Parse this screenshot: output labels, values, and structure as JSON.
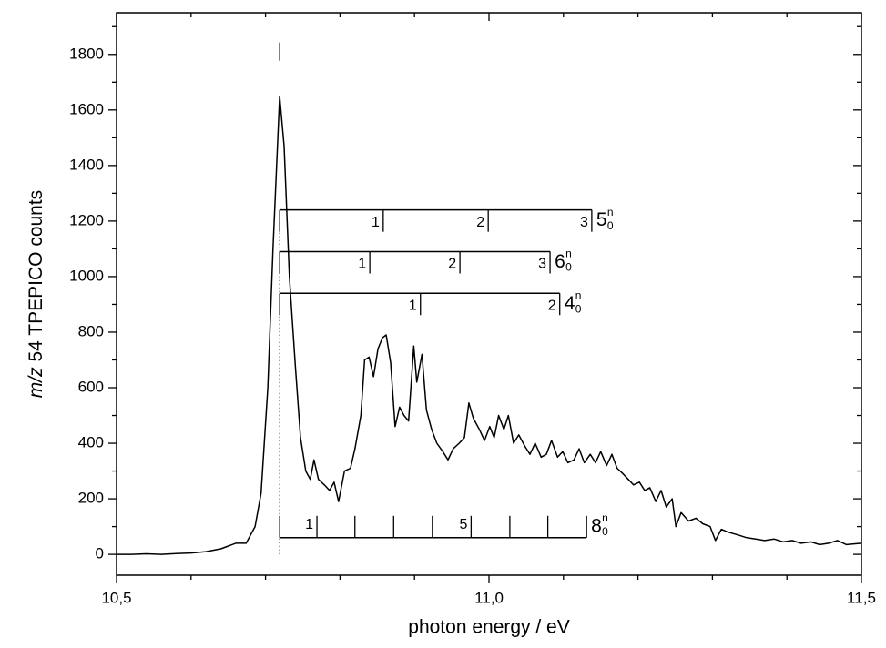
{
  "chart_data": {
    "type": "line",
    "xlabel": "photon energy / eV",
    "ylabel": {
      "italic": "m/z",
      "text": "54 TPEPICO counts"
    },
    "color": "#000000",
    "xlim": [
      10.5,
      11.5
    ],
    "ylim": [
      -75,
      1950
    ],
    "xticks": [
      {
        "value": 10.5,
        "label": "10,5"
      },
      {
        "value": 11.0,
        "label": "11,0"
      },
      {
        "value": 11.5,
        "label": "11,5"
      }
    ],
    "yticks": [
      0,
      200,
      400,
      600,
      800,
      1000,
      1200,
      1400,
      1600,
      1800
    ],
    "xminorticks": [
      10.6,
      10.7,
      10.8,
      10.9,
      11.1,
      11.2,
      11.3,
      11.4
    ],
    "yminorticks": [
      100,
      300,
      500,
      700,
      900,
      1100,
      1300,
      1500,
      1700,
      1900
    ],
    "origin": 10.719,
    "origin_marker": 1810,
    "x": [
      10.5,
      10.52,
      10.54,
      10.56,
      10.58,
      10.6,
      10.62,
      10.64,
      10.65,
      10.66,
      10.674,
      10.686,
      10.694,
      10.703,
      10.71,
      10.719,
      10.725,
      10.732,
      10.74,
      10.747,
      10.754,
      10.76,
      10.765,
      10.771,
      10.779,
      10.786,
      10.792,
      10.798,
      10.806,
      10.814,
      10.82,
      10.828,
      10.833,
      10.839,
      10.845,
      10.851,
      10.857,
      10.862,
      10.868,
      10.874,
      10.88,
      10.886,
      10.892,
      10.899,
      10.903,
      10.91,
      10.916,
      10.923,
      10.93,
      10.938,
      10.945,
      10.952,
      10.96,
      10.967,
      10.973,
      10.979,
      10.987,
      10.994,
      11.001,
      11.007,
      11.013,
      11.02,
      11.026,
      11.033,
      11.04,
      11.048,
      11.055,
      11.062,
      11.07,
      11.077,
      11.084,
      11.092,
      11.099,
      11.106,
      11.114,
      11.121,
      11.128,
      11.136,
      11.143,
      11.15,
      11.158,
      11.165,
      11.172,
      11.18,
      11.187,
      11.194,
      11.202,
      11.209,
      11.216,
      11.224,
      11.231,
      11.238,
      11.246,
      11.251,
      11.258,
      11.268,
      11.278,
      11.287,
      11.297,
      11.304,
      11.312,
      11.321,
      11.334,
      11.346,
      11.358,
      11.37,
      11.383,
      11.395,
      11.407,
      11.419,
      11.432,
      11.444,
      11.456,
      11.468,
      11.48,
      11.5
    ],
    "values": [
      0,
      0,
      2,
      0,
      3,
      5,
      10,
      20,
      30,
      40,
      40,
      100,
      220,
      600,
      1100,
      1650,
      1470,
      1000,
      680,
      420,
      300,
      270,
      340,
      270,
      250,
      230,
      260,
      190,
      300,
      310,
      380,
      500,
      700,
      710,
      640,
      740,
      780,
      790,
      690,
      460,
      530,
      500,
      480,
      750,
      620,
      720,
      520,
      450,
      400,
      370,
      340,
      380,
      400,
      420,
      545,
      490,
      450,
      410,
      460,
      420,
      500,
      450,
      500,
      400,
      430,
      390,
      360,
      400,
      350,
      360,
      410,
      350,
      370,
      330,
      340,
      380,
      330,
      360,
      330,
      370,
      320,
      360,
      310,
      290,
      270,
      250,
      260,
      230,
      240,
      190,
      230,
      170,
      200,
      100,
      150,
      120,
      130,
      110,
      100,
      50,
      90,
      80,
      70,
      60,
      55,
      50,
      55,
      45,
      50,
      40,
      45,
      35,
      40,
      50,
      35,
      40
    ],
    "progressions": [
      {
        "label": "5",
        "sub": "0",
        "sup": "n",
        "y": 1240,
        "direction": "down",
        "ticks": [
          10.858,
          10.999,
          11.138
        ],
        "tick_labels": [
          "1",
          "2",
          "3"
        ]
      },
      {
        "label": "6",
        "sub": "0",
        "sup": "n",
        "y": 1090,
        "direction": "down",
        "ticks": [
          10.84,
          10.961,
          11.082
        ],
        "tick_labels": [
          "1",
          "2",
          "3"
        ]
      },
      {
        "label": "4",
        "sub": "0",
        "sup": "n",
        "y": 940,
        "direction": "down",
        "ticks": [
          10.908,
          11.095
        ],
        "tick_labels": [
          "1",
          "2"
        ]
      },
      {
        "label": "8",
        "sub": "0",
        "sup": "n",
        "y": 60,
        "direction": "up",
        "ticks": [
          10.769,
          10.82,
          10.872,
          10.924,
          10.976,
          11.028,
          11.079,
          11.131
        ],
        "tick_labels": [
          "1",
          null,
          null,
          null,
          "5",
          null,
          null,
          null
        ]
      }
    ]
  }
}
